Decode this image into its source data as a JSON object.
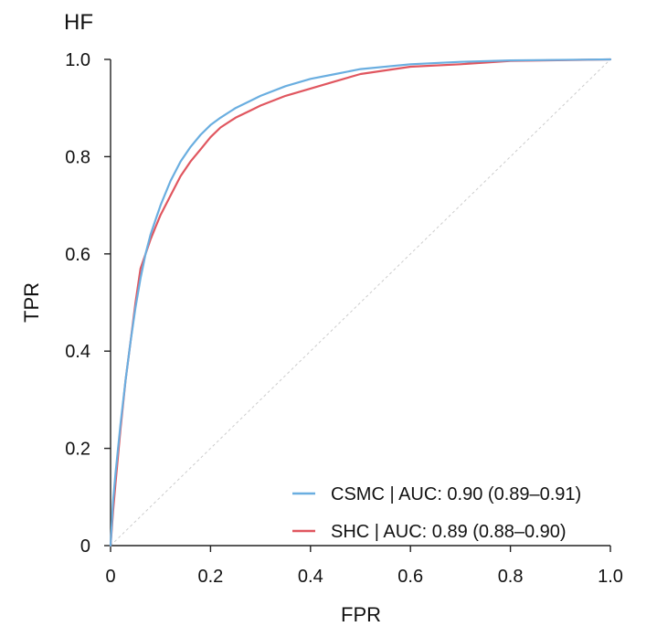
{
  "chart_data": {
    "type": "line",
    "title": "HF",
    "xlabel": "FPR",
    "ylabel": "TPR",
    "xlim": [
      0,
      1
    ],
    "ylim": [
      0,
      1
    ],
    "grid": false,
    "legend_position": "bottom-right",
    "x_ticks": [
      {
        "value": 0,
        "label": "0"
      },
      {
        "value": 0.2,
        "label": "0.2"
      },
      {
        "value": 0.4,
        "label": "0.4"
      },
      {
        "value": 0.6,
        "label": "0.6"
      },
      {
        "value": 0.8,
        "label": "0.8"
      },
      {
        "value": 1.0,
        "label": "1.0"
      }
    ],
    "y_ticks": [
      {
        "value": 0,
        "label": "0"
      },
      {
        "value": 0.2,
        "label": "0.2"
      },
      {
        "value": 0.4,
        "label": "0.4"
      },
      {
        "value": 0.6,
        "label": "0.6"
      },
      {
        "value": 0.8,
        "label": "0.8"
      },
      {
        "value": 1.0,
        "label": "1.0"
      }
    ],
    "reference_line": {
      "x": [
        0,
        1
      ],
      "y": [
        0,
        1
      ],
      "color": "#cccccc"
    },
    "series": [
      {
        "name": "CSMC | AUC: 0.90 (0.89–0.91)",
        "color": "#6aaee0",
        "x": [
          0,
          0.005,
          0.01,
          0.02,
          0.03,
          0.04,
          0.05,
          0.06,
          0.07,
          0.08,
          0.09,
          0.1,
          0.12,
          0.14,
          0.16,
          0.18,
          0.2,
          0.22,
          0.25,
          0.28,
          0.3,
          0.35,
          0.4,
          0.45,
          0.5,
          0.6,
          0.7,
          0.8,
          1.0
        ],
        "y": [
          0,
          0.09,
          0.15,
          0.25,
          0.34,
          0.42,
          0.49,
          0.55,
          0.6,
          0.64,
          0.67,
          0.7,
          0.75,
          0.79,
          0.82,
          0.845,
          0.865,
          0.88,
          0.9,
          0.915,
          0.925,
          0.945,
          0.96,
          0.97,
          0.98,
          0.99,
          0.995,
          0.998,
          1.0
        ]
      },
      {
        "name": "SHC | AUC: 0.89 (0.88–0.90)",
        "color": "#e0565f",
        "x": [
          0,
          0.005,
          0.01,
          0.02,
          0.03,
          0.04,
          0.05,
          0.06,
          0.07,
          0.08,
          0.09,
          0.1,
          0.12,
          0.14,
          0.16,
          0.18,
          0.2,
          0.22,
          0.25,
          0.28,
          0.3,
          0.35,
          0.4,
          0.45,
          0.5,
          0.6,
          0.7,
          0.8,
          1.0
        ],
        "y": [
          0,
          0.07,
          0.13,
          0.24,
          0.34,
          0.42,
          0.5,
          0.57,
          0.6,
          0.63,
          0.655,
          0.68,
          0.72,
          0.76,
          0.79,
          0.815,
          0.84,
          0.86,
          0.88,
          0.895,
          0.905,
          0.925,
          0.94,
          0.955,
          0.97,
          0.985,
          0.99,
          0.997,
          1.0
        ]
      }
    ]
  }
}
